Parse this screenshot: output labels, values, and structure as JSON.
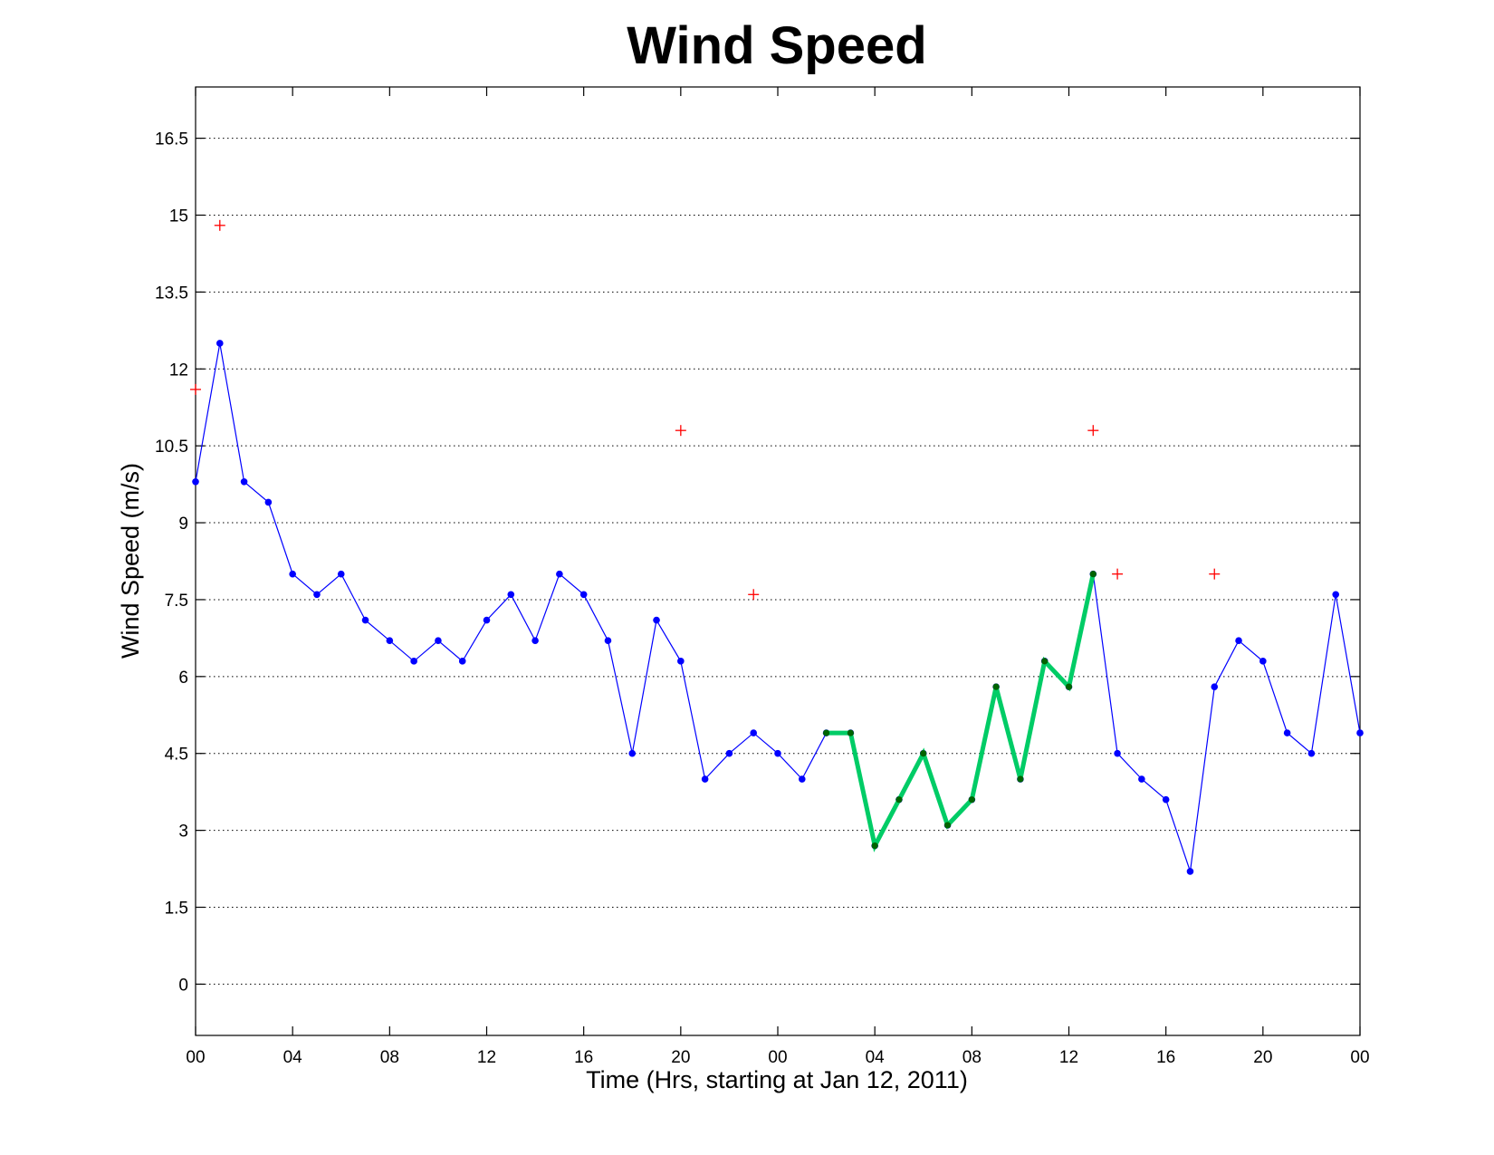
{
  "chart_data": {
    "type": "line",
    "title": "Wind Speed",
    "xlabel": "Time (Hrs, starting at Jan 12, 2011)",
    "ylabel": "Wind Speed (m/s)",
    "xlim": [
      0,
      48
    ],
    "ylim": [
      -1,
      17.5
    ],
    "yticks": [
      0,
      1.5,
      3,
      4.5,
      6,
      7.5,
      9,
      10.5,
      12,
      13.5,
      15,
      16.5
    ],
    "ytick_labels": [
      "0",
      "1.5",
      "3",
      "4.5",
      "6",
      "7.5",
      "9",
      "10.5",
      "12",
      "13.5",
      "15",
      "16.5"
    ],
    "xticks": [
      0,
      4,
      8,
      12,
      16,
      20,
      24,
      28,
      32,
      36,
      40,
      44,
      48
    ],
    "xtick_labels": [
      "00",
      "04",
      "08",
      "12",
      "16",
      "20",
      "00",
      "04",
      "08",
      "12",
      "16",
      "20",
      "00"
    ],
    "grid": "y",
    "series": [
      {
        "style": "blue line with dot markers",
        "color": "#0000ff",
        "x": [
          0,
          1,
          2,
          3,
          4,
          5,
          6,
          7,
          8,
          9,
          10,
          11,
          12,
          13,
          14,
          15,
          16,
          17,
          18,
          19,
          20,
          21,
          22,
          23,
          24,
          25,
          26,
          27,
          28,
          29,
          30,
          31,
          32,
          33,
          34,
          35,
          36,
          37,
          38,
          39,
          40,
          41,
          42,
          43,
          44,
          45,
          46,
          47,
          48
        ],
        "y": [
          9.8,
          12.5,
          9.8,
          9.4,
          8.0,
          7.6,
          8.0,
          7.1,
          6.7,
          6.3,
          6.7,
          6.3,
          7.1,
          7.6,
          6.7,
          8.0,
          7.6,
          6.7,
          4.5,
          7.1,
          6.3,
          4.0,
          4.5,
          4.9,
          4.5,
          4.0,
          4.9,
          4.9,
          2.7,
          3.6,
          4.5,
          3.1,
          3.6,
          5.8,
          4.0,
          6.3,
          5.8,
          8.0,
          4.5,
          4.0,
          3.6,
          2.2,
          5.8,
          6.7,
          6.3,
          4.9,
          4.5,
          7.6,
          4.9
        ]
      },
      {
        "style": "thick green highlighted segment with dark green markers",
        "color": "#00cc66",
        "marker_color": "#006400",
        "x": [
          26,
          27,
          28,
          29,
          30,
          31,
          32,
          33,
          34,
          35,
          36,
          37
        ],
        "y": [
          4.9,
          4.9,
          2.7,
          3.6,
          4.5,
          3.1,
          3.6,
          5.8,
          4.0,
          6.3,
          5.8,
          8.0
        ]
      },
      {
        "style": "red plus markers",
        "color": "#ff0000",
        "x": [
          0,
          1,
          20,
          23,
          37,
          38,
          42
        ],
        "y": [
          11.6,
          14.8,
          10.8,
          7.6,
          10.8,
          8.0,
          8.0
        ]
      }
    ]
  }
}
